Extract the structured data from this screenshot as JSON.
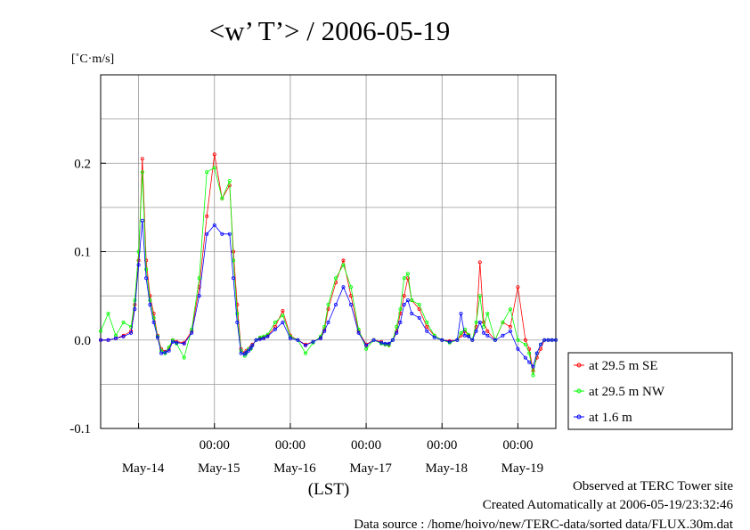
{
  "chart_data": {
    "type": "line",
    "title": "<w’ T’> / 2006-05-19",
    "ylabel": "[˚C·m/s]",
    "xlabel": "(LST)",
    "ylim": [
      -0.1,
      0.3
    ],
    "yticks": [
      -0.1,
      0.0,
      0.1,
      0.2
    ],
    "ytick_labels": [
      "-0.1",
      "0.0",
      "0.1",
      "0.2"
    ],
    "xlim_days": [
      -0.5,
      5.5
    ],
    "time_tick_labels": [
      "00:00",
      "00:00",
      "00:00",
      "00:00",
      "00:00"
    ],
    "day_labels": [
      "May-14",
      "May-15",
      "May-16",
      "May-17",
      "May-18",
      "May-19"
    ],
    "grid": true,
    "legend_position": "right",
    "series": [
      {
        "name": "at 29.5 m SE",
        "color": "#ff0000",
        "x": [
          -0.5,
          -0.4,
          -0.3,
          -0.2,
          -0.1,
          -0.05,
          0.0,
          0.05,
          0.1,
          0.15,
          0.2,
          0.25,
          0.3,
          0.35,
          0.4,
          0.45,
          0.5,
          0.6,
          0.7,
          0.8,
          0.9,
          1.0,
          1.1,
          1.2,
          1.25,
          1.3,
          1.35,
          1.4,
          1.42,
          1.45,
          1.48,
          1.5,
          1.55,
          1.6,
          1.65,
          1.7,
          1.8,
          1.9,
          2.0,
          2.1,
          2.2,
          2.3,
          2.4,
          2.45,
          2.5,
          2.6,
          2.7,
          2.8,
          2.9,
          3.0,
          3.1,
          3.2,
          3.25,
          3.3,
          3.35,
          3.4,
          3.45,
          3.5,
          3.55,
          3.6,
          3.7,
          3.8,
          3.9,
          4.0,
          4.1,
          4.2,
          4.25,
          4.3,
          4.35,
          4.4,
          4.45,
          4.5,
          4.55,
          4.6,
          4.7,
          4.8,
          4.9,
          5.0,
          5.1,
          5.15,
          5.2,
          5.25,
          5.3,
          5.35,
          5.4,
          5.45,
          5.5
        ],
        "y": [
          0.0,
          0.0,
          0.002,
          0.005,
          0.01,
          0.04,
          0.09,
          0.205,
          0.09,
          0.05,
          0.03,
          0.005,
          -0.01,
          -0.013,
          -0.01,
          0.0,
          -0.002,
          -0.003,
          0.01,
          0.06,
          0.14,
          0.21,
          0.16,
          0.175,
          0.1,
          0.04,
          -0.01,
          -0.015,
          -0.012,
          -0.01,
          -0.008,
          -0.005,
          0.0,
          0.002,
          0.003,
          0.005,
          0.015,
          0.033,
          0.005,
          0.0,
          -0.005,
          -0.002,
          0.003,
          0.012,
          0.035,
          0.065,
          0.09,
          0.05,
          0.01,
          -0.005,
          0.0,
          -0.002,
          -0.005,
          -0.005,
          0.0,
          0.01,
          0.03,
          0.05,
          0.07,
          0.045,
          0.035,
          0.015,
          0.005,
          0.0,
          -0.001,
          0.0,
          0.005,
          0.01,
          0.005,
          0.0,
          0.015,
          0.088,
          0.02,
          0.01,
          0.0,
          0.02,
          0.015,
          0.06,
          0.0,
          -0.01,
          -0.035,
          -0.02,
          -0.01,
          0.0,
          0.0,
          0.0,
          0.0
        ]
      },
      {
        "name": "at 29.5 m NW",
        "color": "#00ff00",
        "x": [
          -0.5,
          -0.4,
          -0.3,
          -0.2,
          -0.1,
          -0.05,
          0.0,
          0.05,
          0.1,
          0.15,
          0.2,
          0.25,
          0.3,
          0.35,
          0.4,
          0.45,
          0.5,
          0.6,
          0.7,
          0.8,
          0.9,
          1.0,
          1.1,
          1.2,
          1.25,
          1.3,
          1.35,
          1.4,
          1.42,
          1.45,
          1.48,
          1.5,
          1.55,
          1.6,
          1.65,
          1.7,
          1.8,
          1.9,
          2.0,
          2.1,
          2.2,
          2.3,
          2.4,
          2.45,
          2.5,
          2.6,
          2.7,
          2.8,
          2.9,
          3.0,
          3.1,
          3.2,
          3.25,
          3.3,
          3.35,
          3.4,
          3.45,
          3.5,
          3.55,
          3.6,
          3.7,
          3.8,
          3.9,
          4.0,
          4.1,
          4.2,
          4.25,
          4.3,
          4.35,
          4.4,
          4.45,
          4.5,
          4.55,
          4.6,
          4.7,
          4.8,
          4.9,
          5.0,
          5.1,
          5.15,
          5.2,
          5.25,
          5.3,
          5.35,
          5.4,
          5.45,
          5.5
        ],
        "y": [
          0.01,
          0.03,
          0.005,
          0.02,
          0.015,
          0.045,
          0.1,
          0.19,
          0.08,
          0.045,
          0.025,
          0.004,
          -0.012,
          -0.015,
          -0.008,
          0.0,
          -0.004,
          -0.02,
          0.012,
          0.07,
          0.19,
          0.195,
          0.16,
          0.18,
          0.09,
          0.03,
          -0.012,
          -0.018,
          -0.015,
          -0.01,
          -0.01,
          -0.006,
          0.0,
          0.003,
          0.004,
          0.006,
          0.02,
          0.028,
          0.004,
          0.0,
          -0.015,
          -0.003,
          0.004,
          0.015,
          0.04,
          0.07,
          0.085,
          0.06,
          0.012,
          -0.01,
          0.0,
          -0.004,
          -0.005,
          -0.006,
          0.0,
          0.015,
          0.035,
          0.07,
          0.075,
          0.045,
          0.04,
          0.02,
          0.005,
          0.0,
          -0.003,
          0.0,
          0.008,
          0.012,
          0.006,
          0.0,
          0.02,
          0.05,
          0.015,
          0.03,
          0.0,
          0.02,
          0.035,
          0.0,
          -0.005,
          -0.015,
          -0.04,
          -0.015,
          -0.005,
          0.0,
          0.0,
          0.0,
          0.0
        ]
      },
      {
        "name": "at 1.6 m",
        "color": "#0000ff",
        "x": [
          -0.5,
          -0.4,
          -0.3,
          -0.2,
          -0.1,
          -0.05,
          0.0,
          0.05,
          0.1,
          0.15,
          0.2,
          0.25,
          0.3,
          0.35,
          0.4,
          0.45,
          0.5,
          0.6,
          0.7,
          0.8,
          0.9,
          1.0,
          1.1,
          1.2,
          1.25,
          1.3,
          1.35,
          1.4,
          1.42,
          1.45,
          1.48,
          1.5,
          1.55,
          1.6,
          1.65,
          1.7,
          1.8,
          1.9,
          2.0,
          2.1,
          2.2,
          2.3,
          2.4,
          2.45,
          2.5,
          2.6,
          2.7,
          2.8,
          2.9,
          3.0,
          3.1,
          3.2,
          3.25,
          3.3,
          3.35,
          3.4,
          3.45,
          3.5,
          3.55,
          3.6,
          3.7,
          3.8,
          3.9,
          4.0,
          4.1,
          4.2,
          4.25,
          4.3,
          4.35,
          4.4,
          4.45,
          4.5,
          4.55,
          4.6,
          4.7,
          4.8,
          4.9,
          5.0,
          5.1,
          5.15,
          5.2,
          5.25,
          5.3,
          5.35,
          5.4,
          5.45,
          5.5
        ],
        "y": [
          0.0,
          0.0,
          0.002,
          0.004,
          0.008,
          0.035,
          0.085,
          0.135,
          0.07,
          0.04,
          0.02,
          0.003,
          -0.015,
          -0.014,
          -0.012,
          -0.002,
          -0.003,
          -0.004,
          0.008,
          0.05,
          0.12,
          0.13,
          0.12,
          0.12,
          0.07,
          0.02,
          -0.015,
          -0.016,
          -0.014,
          -0.012,
          -0.009,
          -0.006,
          0.0,
          0.001,
          0.002,
          0.004,
          0.012,
          0.02,
          0.002,
          0.0,
          -0.006,
          -0.002,
          0.002,
          0.01,
          0.02,
          0.04,
          0.06,
          0.04,
          0.008,
          -0.006,
          0.0,
          -0.003,
          -0.004,
          -0.004,
          0.0,
          0.008,
          0.02,
          0.04,
          0.045,
          0.03,
          0.025,
          0.01,
          0.003,
          0.0,
          -0.002,
          0.0,
          0.03,
          0.005,
          0.004,
          0.0,
          0.01,
          0.02,
          0.008,
          0.005,
          0.0,
          0.005,
          0.01,
          -0.01,
          -0.02,
          -0.025,
          -0.03,
          -0.015,
          -0.005,
          0.0,
          0.0,
          0.0,
          0.0
        ]
      }
    ]
  },
  "footer": {
    "line1": "Observed at TERC Tower site",
    "line2": "Created Automatically at 2006-05-19/23:32:46",
    "line3": "Data source : /home/hoivo/new/TERC-data/sorted  data/FLUX.30m.dat"
  }
}
